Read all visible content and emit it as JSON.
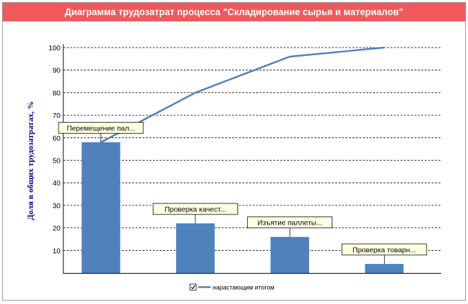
{
  "window": {
    "title": "Диаграмма трудозатрат процесса \"Складирование сырья и материалов\""
  },
  "chart_data": {
    "type": "bar",
    "title": "Диаграмма трудозатрат процесса \"Складирование сырья и материалов\"",
    "ylabel": "Доля в общих трудозатратах, %",
    "ylim": [
      0,
      100
    ],
    "yticks": [
      10,
      20,
      30,
      40,
      50,
      60,
      70,
      80,
      90,
      100
    ],
    "grid": true,
    "categories": [
      "Перемещение пал...",
      "Проверка качест...",
      "Изъятие паллеты...",
      "Проверка товарн..."
    ],
    "values": [
      58,
      22,
      16,
      4
    ],
    "cumulative": {
      "name": "нарастающим итогом",
      "values": [
        58,
        80,
        96,
        100
      ]
    },
    "legend": {
      "position": "bottom",
      "checked": true,
      "label": "нарастающим итогом"
    },
    "colors": {
      "bar": "#4f81bd",
      "line": "#4f81bd",
      "title_bar": "#f0595b",
      "callout": "#ffffe1"
    }
  }
}
